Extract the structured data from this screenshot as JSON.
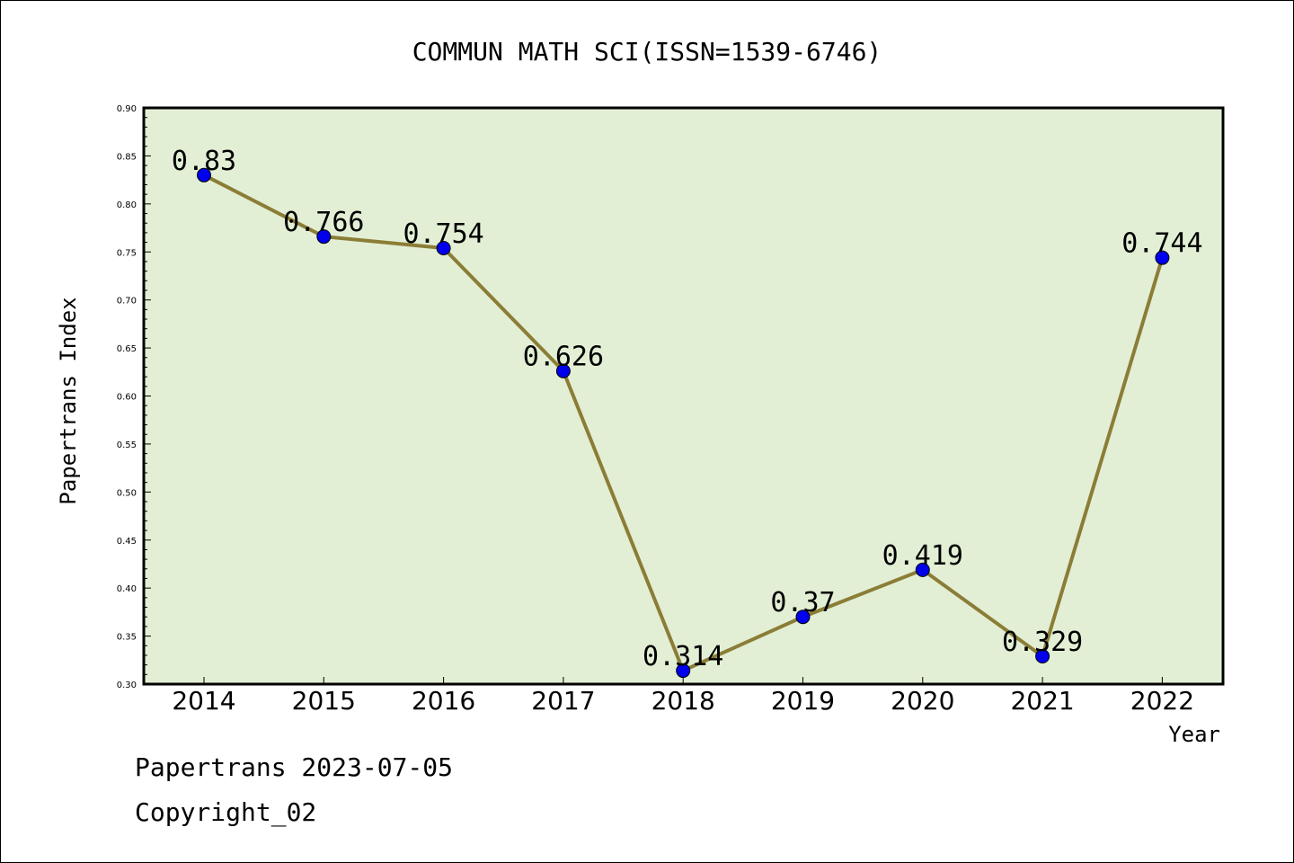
{
  "chart_data": {
    "type": "line",
    "title": "COMMUN MATH SCI(ISSN=1539-6746)",
    "xlabel": "Year",
    "ylabel": "Papertrans Index",
    "categories": [
      "2014",
      "2015",
      "2016",
      "2017",
      "2018",
      "2019",
      "2020",
      "2021",
      "2022"
    ],
    "values": [
      0.83,
      0.766,
      0.754,
      0.626,
      0.314,
      0.37,
      0.419,
      0.329,
      0.744
    ],
    "data_labels": [
      "0.83",
      "0.766",
      "0.754",
      "0.626",
      "0.314",
      "0.37",
      "0.419",
      "0.329",
      "0.744"
    ],
    "ylim": [
      0.3,
      0.9
    ],
    "yticks": [
      "0.30",
      "0.35",
      "0.40",
      "0.45",
      "0.50",
      "0.55",
      "0.60",
      "0.65",
      "0.70",
      "0.75",
      "0.80",
      "0.85",
      "0.90"
    ],
    "grid": false,
    "colors": {
      "plot_background": "#e2efd5",
      "line": "#8b7d36",
      "marker": "#0000ee"
    }
  },
  "footer": {
    "line1": "Papertrans 2023-07-05",
    "line2": "Copyright_02"
  }
}
